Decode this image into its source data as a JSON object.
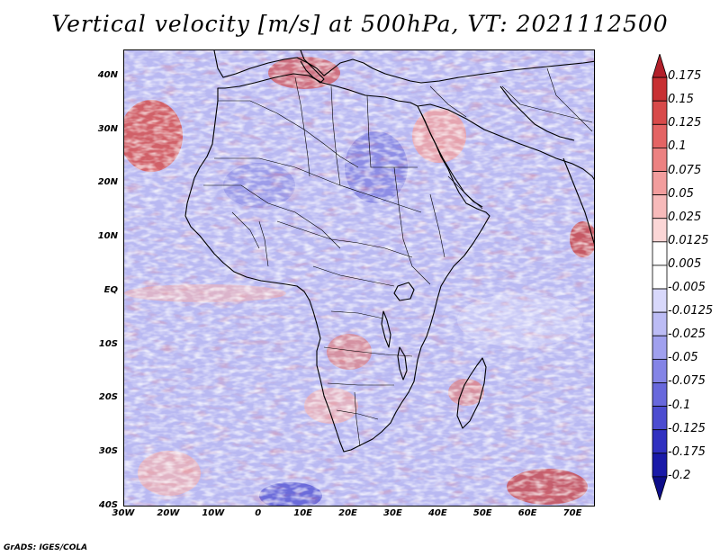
{
  "title": "Vertical velocity [m/s] at 500hPa, VT: 2021112500",
  "footer": "GrADS: IGES/COLA",
  "map": {
    "region": "Africa and surrounding oceans",
    "lon_range": [
      -30,
      75
    ],
    "lat_range": [
      -40,
      45
    ],
    "lat_ticks": [
      "40N",
      "30N",
      "20N",
      "10N",
      "EQ",
      "10S",
      "20S",
      "30S",
      "40S"
    ],
    "lon_ticks": [
      "30W",
      "20W",
      "10W",
      "0",
      "10E",
      "20E",
      "30E",
      "40E",
      "50E",
      "60E",
      "70E"
    ]
  },
  "colorbar": {
    "labels": [
      "0.175",
      "0.15",
      "0.125",
      "0.1",
      "0.075",
      "0.05",
      "0.025",
      "0.0125",
      "0.005",
      "-0.005",
      "-0.0125",
      "-0.025",
      "-0.05",
      "-0.075",
      "-0.1",
      "-0.125",
      "-0.175",
      "-0.2"
    ],
    "colors": [
      "#b2202a",
      "#c83033",
      "#d84a4a",
      "#e46464",
      "#ec8181",
      "#f29d9d",
      "#f7baba",
      "#fbd6d6",
      "#ffffff",
      "#ffffff",
      "#d8d8fb",
      "#bcbcf5",
      "#a0a0ee",
      "#8484e6",
      "#6868dc",
      "#4c4cd0",
      "#3030c0",
      "#1a1aa8",
      "#0e0e8a"
    ]
  }
}
